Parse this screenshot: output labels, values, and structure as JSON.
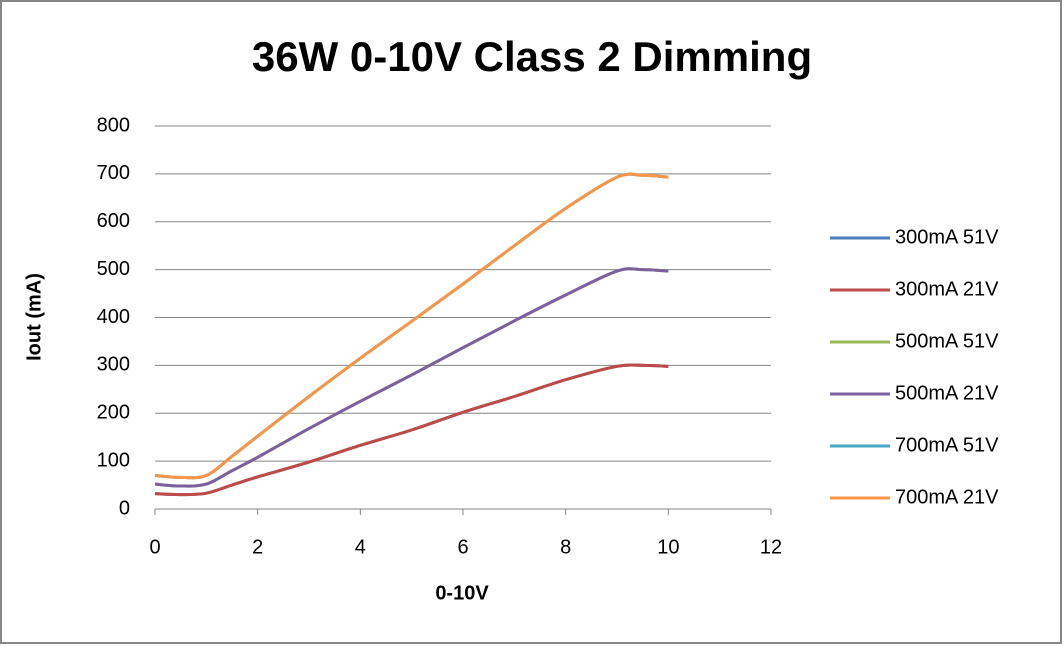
{
  "chart_data": {
    "type": "line",
    "title": "36W 0-10V Class 2 Dimming",
    "x_label": "0-10V",
    "y_label": "Iout (mA)",
    "x": [
      0,
      0.5,
      1,
      1.5,
      2,
      3,
      4,
      5,
      6,
      7,
      8,
      9,
      9.5,
      10
    ],
    "series": [
      {
        "name": "300mA 51V",
        "color": "#4a7ebb",
        "values": [
          32,
          30,
          33,
          50,
          67,
          98,
          133,
          165,
          202,
          235,
          270,
          298,
          300,
          298
        ]
      },
      {
        "name": "300mA 21V",
        "color": "#be4b48",
        "values": [
          32,
          30,
          33,
          50,
          67,
          98,
          133,
          165,
          202,
          235,
          270,
          298,
          300,
          298
        ]
      },
      {
        "name": "500mA 51V",
        "color": "#98b954",
        "values": [
          52,
          48,
          52,
          80,
          108,
          168,
          225,
          280,
          337,
          393,
          447,
          497,
          500,
          497
        ]
      },
      {
        "name": "500mA 21V",
        "color": "#7d60a0",
        "values": [
          52,
          48,
          52,
          80,
          108,
          168,
          225,
          280,
          337,
          393,
          447,
          497,
          500,
          497
        ]
      },
      {
        "name": "700mA 51V",
        "color": "#46aac5",
        "values": [
          70,
          66,
          70,
          110,
          152,
          235,
          315,
          392,
          470,
          550,
          628,
          693,
          697,
          693
        ]
      },
      {
        "name": "700mA 21V",
        "color": "#f79646",
        "values": [
          70,
          66,
          70,
          110,
          152,
          235,
          315,
          392,
          470,
          550,
          628,
          693,
          697,
          693
        ]
      }
    ],
    "xlim": [
      0,
      12
    ],
    "xticks": [
      0,
      2,
      4,
      6,
      8,
      10,
      12
    ],
    "ylim": [
      0,
      800
    ],
    "yticks": [
      0,
      100,
      200,
      300,
      400,
      500,
      600,
      700,
      800
    ],
    "grid": true,
    "legend": "right"
  }
}
